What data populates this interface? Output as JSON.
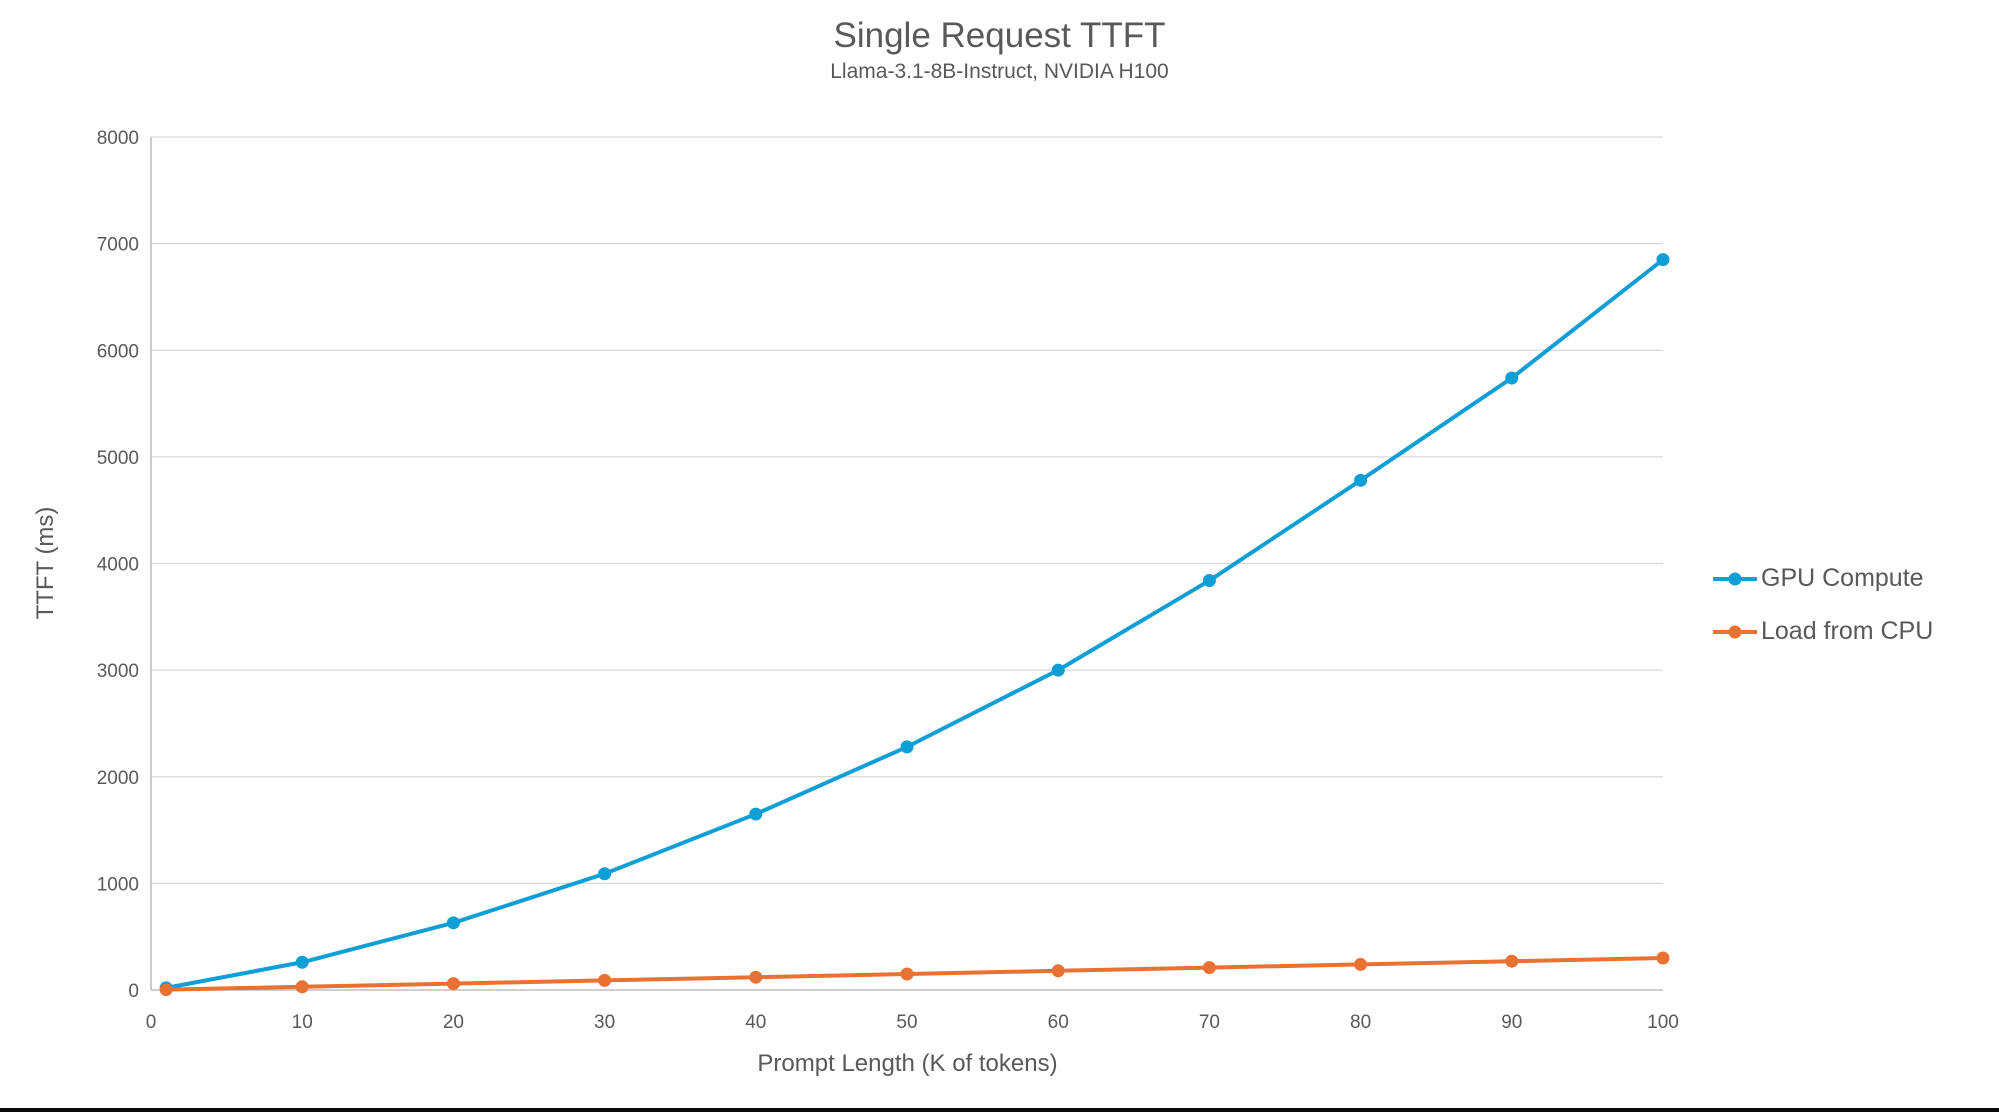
{
  "colors": {
    "text": "#595959",
    "gridline": "#D9D9D9",
    "axis_line": "#BFBFBF",
    "background": "#FFFFFF",
    "bottom_bar": "#0B0B0B"
  },
  "chart_data": {
    "type": "line",
    "title": "Single Request TTFT",
    "subtitle": "Llama-3.1-8B-Instruct, NVIDIA H100",
    "xlabel": "Prompt Length (K of tokens)",
    "ylabel": "TTFT (ms)",
    "xlim": [
      0,
      100
    ],
    "ylim": [
      0,
      8000
    ],
    "xticks": [
      0,
      10,
      20,
      30,
      40,
      50,
      60,
      70,
      80,
      90,
      100
    ],
    "yticks": [
      0,
      1000,
      2000,
      3000,
      4000,
      5000,
      6000,
      7000,
      8000
    ],
    "grid": "horizontal-only",
    "legend_position": "right",
    "x": [
      1,
      10,
      20,
      30,
      40,
      50,
      60,
      70,
      80,
      90,
      100
    ],
    "series": [
      {
        "name": "GPU Compute",
        "color": "#0F9ED5",
        "values": [
          20,
          260,
          630,
          1090,
          1650,
          2280,
          3000,
          3840,
          4780,
          5740,
          6850
        ]
      },
      {
        "name": "Load from CPU",
        "color": "#E97132",
        "values": [
          3,
          30,
          60,
          90,
          120,
          150,
          180,
          210,
          240,
          270,
          300
        ]
      }
    ]
  }
}
